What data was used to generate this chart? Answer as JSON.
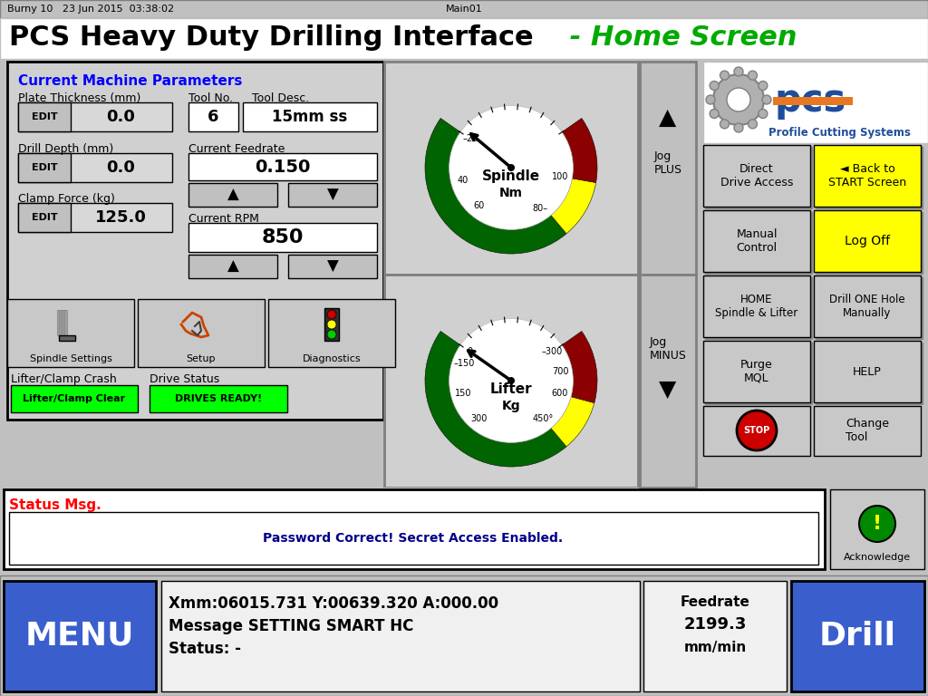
{
  "title_black": "PCS Heavy Duty Drilling Interface",
  "title_green": " - Home Screen",
  "header_left": "Burny 10   23 Jun 2015  03:38:02",
  "header_right": "Main01",
  "bg_color": "#c0c0c0",
  "params_title": "Current Machine Parameters",
  "plate_thickness_label": "Plate Thickness (mm)",
  "plate_thickness_val": "0.0",
  "drill_depth_label": "Drill Depth (mm)",
  "drill_depth_val": "0.0",
  "clamp_force_label": "Clamp Force (kg)",
  "clamp_force_val": "125.0",
  "tool_no_label": "Tool No.",
  "tool_no_val": "6",
  "tool_desc_label": "Tool Desc.",
  "tool_desc_val": "15mm ss",
  "feedrate_label": "Current Feedrate",
  "feedrate_val": "0.150",
  "rpm_label": "Current RPM",
  "rpm_val": "850",
  "spindle_label": "Spindle",
  "spindle_unit": "Nm",
  "lifter_label": "Lifter",
  "lifter_unit": "Kg",
  "jog_plus": "Jog\nPLUS",
  "jog_minus": "Jog\nMINUS",
  "btn_direct": "Direct\nDrive Access",
  "btn_back": "◄ Back to\nSTART Screen",
  "btn_manual": "Manual\nControl",
  "btn_logoff": "Log Off",
  "btn_home": "HOME\nSpindle & Lifter",
  "btn_drill_one": "Drill ONE Hole\nManually",
  "btn_purge": "Purge\nMQL",
  "btn_help": "HELP",
  "btn_change": "Change\nTool",
  "spindle_settings": "Spindle Settings",
  "setup": "Setup",
  "diagnostics": "Diagnostics",
  "lifter_crash_label": "Lifter/Clamp Crash",
  "lifter_clear_btn": "Lifter/Clamp Clear",
  "drive_status_label": "Drive Status",
  "drives_ready_btn": "DRIVES READY!",
  "status_msg_label": "Status Msg.",
  "status_msg_val": "Password Correct! Secret Access Enabled.",
  "coord_line": "Xmm:06015.731 Y:00639.320 A:000.00",
  "msg_line": "Message SETTING SMART HC",
  "status_line": "Status: -",
  "feedrate_display_l1": "Feedrate",
  "feedrate_display_l2": "2199.3",
  "feedrate_display_l3": "mm/min",
  "menu_label": "MENU",
  "drill_label": "Drill",
  "blue_btn": "#3a5fcd",
  "pcs_blue": "#1e4d9b",
  "pcs_orange": "#e87722"
}
